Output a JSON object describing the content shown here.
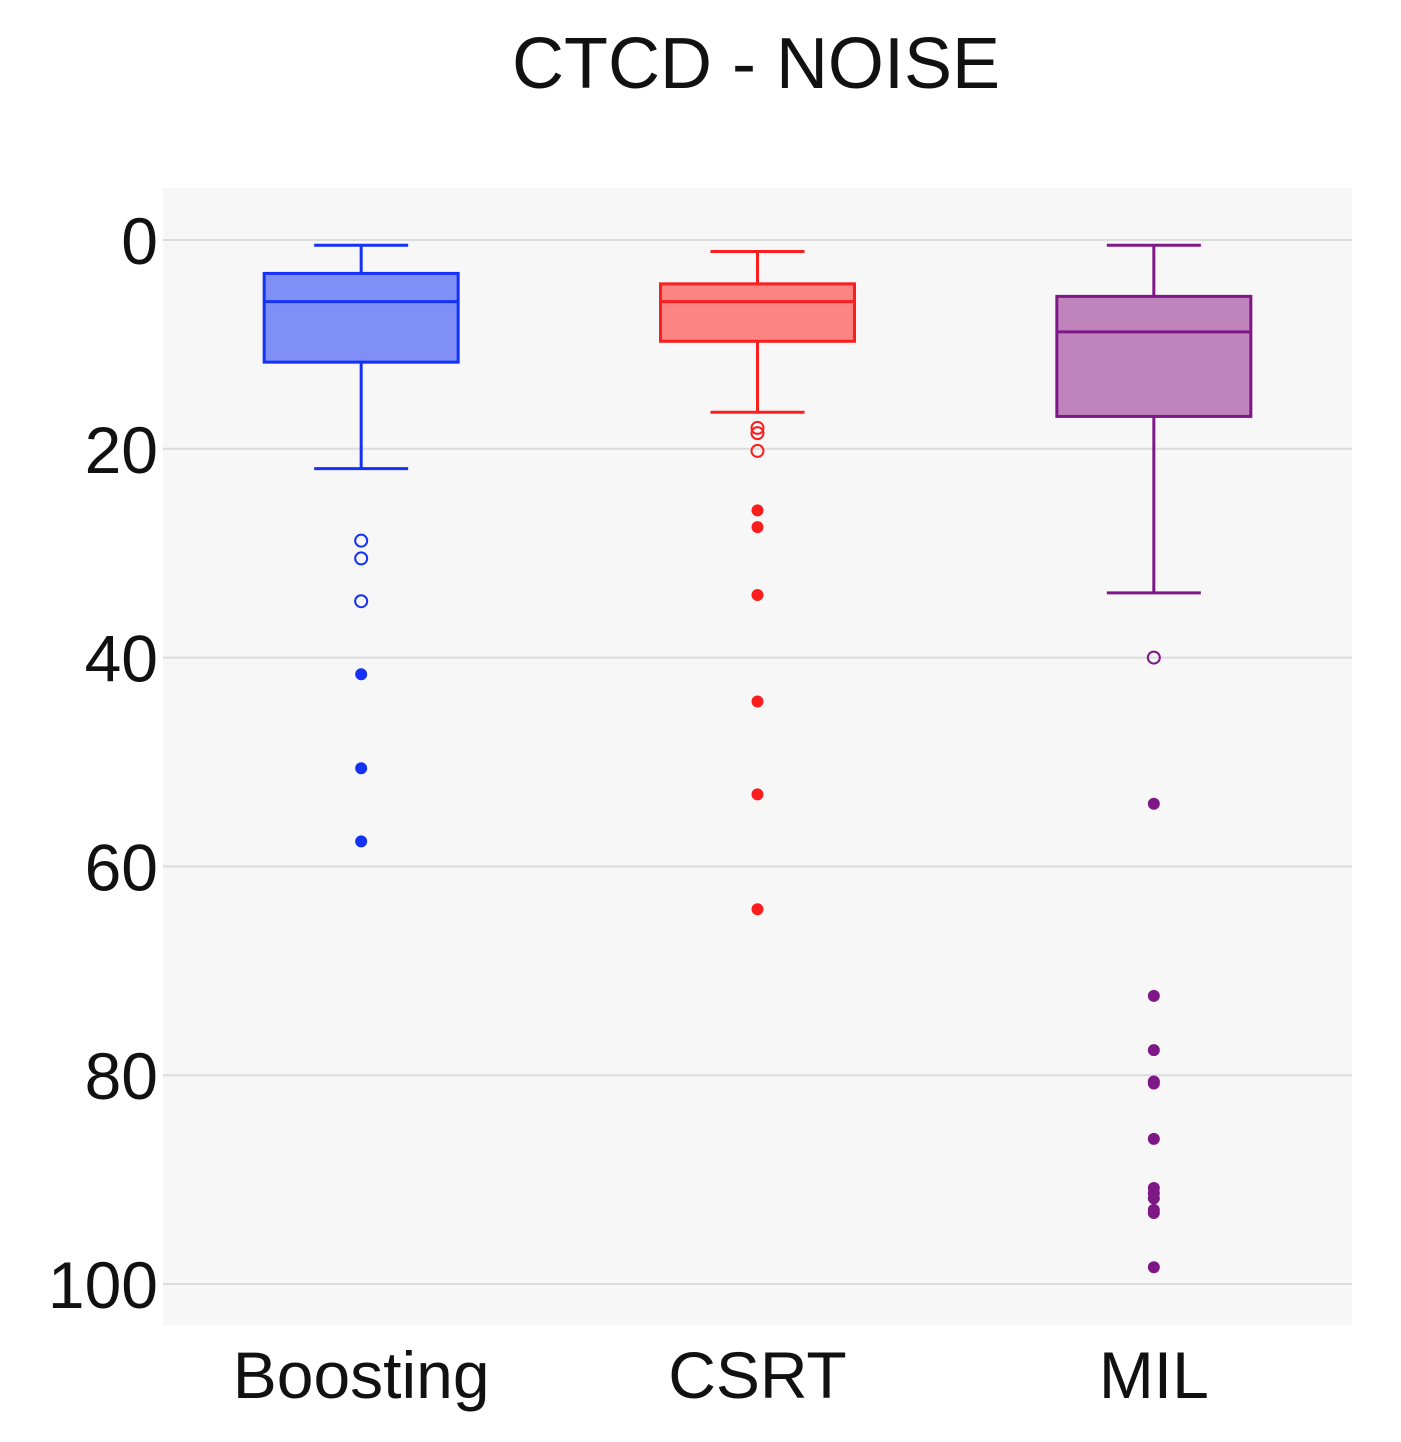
{
  "chart_data": {
    "type": "box",
    "title": "CTCD - NOISE",
    "xlabel": "",
    "ylabel": "",
    "ylim": [
      104,
      -5
    ],
    "y_axis_reversed": true,
    "yticks": [
      0,
      20,
      40,
      60,
      80,
      100
    ],
    "grid": "horizontal",
    "background": "#f7f7f7",
    "categories": [
      "Boosting",
      "CSRT",
      "MIL"
    ],
    "series": [
      {
        "category": "Boosting",
        "color": "#1432f5",
        "fill": "#7f8ff7",
        "whisker_low": 0.5,
        "q1": 3.2,
        "median": 5.9,
        "q3": 11.7,
        "whisker_high": 21.9,
        "outliers_suspected": [
          28.8,
          30.5,
          34.6
        ],
        "outliers_extreme": [
          41.6,
          50.6,
          57.6
        ]
      },
      {
        "category": "CSRT",
        "color": "#fa1e1e",
        "fill": "#fc8482",
        "whisker_low": 1.1,
        "q1": 4.2,
        "median": 5.9,
        "q3": 9.7,
        "whisker_high": 16.5,
        "outliers_suspected": [
          18.0,
          18.5,
          20.2
        ],
        "outliers_extreme": [
          25.9,
          27.5,
          34.0,
          44.2,
          53.1,
          64.1
        ]
      },
      {
        "category": "MIL",
        "color": "#7f1887",
        "fill": "#bf84bc",
        "whisker_low": 0.5,
        "q1": 5.4,
        "median": 8.8,
        "q3": 16.9,
        "whisker_high": 33.8,
        "outliers_suspected": [
          40.0
        ],
        "outliers_extreme": [
          54.0,
          72.4,
          77.6,
          80.6,
          80.8,
          86.1,
          90.8,
          91.3,
          91.8,
          92.9,
          93.2,
          98.4
        ]
      }
    ]
  }
}
